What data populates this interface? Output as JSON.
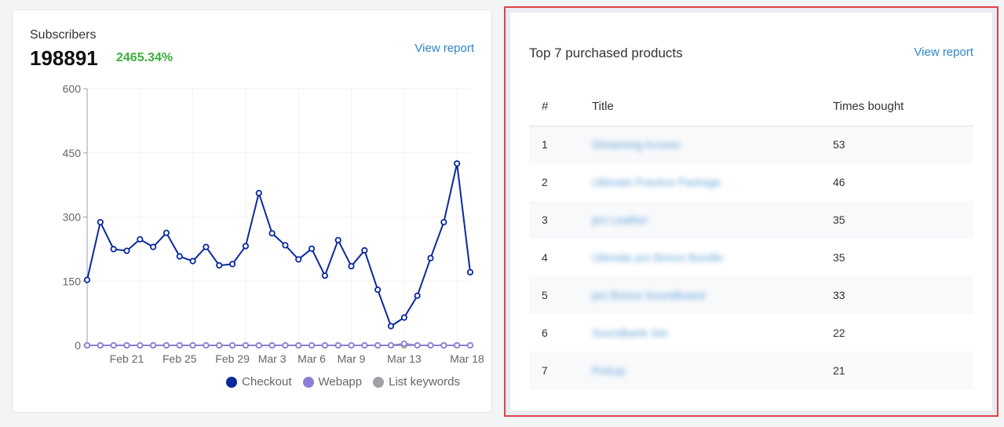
{
  "subscribers": {
    "title": "Subscribers",
    "value": "198891",
    "growth": "2465.34%",
    "view_report": "View report"
  },
  "chart_data": {
    "type": "line",
    "x_tick_labels": [
      "Feb 21",
      "Feb 25",
      "Feb 29",
      "Mar 3",
      "Mar 6",
      "Mar 9",
      "Mar 13",
      "Mar 18"
    ],
    "y_ticks": [
      0,
      150,
      300,
      450,
      600
    ],
    "ylim": [
      0,
      600
    ],
    "legend_position": "bottom-right",
    "series": [
      {
        "name": "Checkout",
        "color": "#0a2a9c",
        "values": [
          153,
          288,
          225,
          221,
          248,
          230,
          263,
          208,
          197,
          230,
          187,
          190,
          232,
          356,
          262,
          234,
          201,
          226,
          163,
          246,
          185,
          222,
          130,
          45,
          65,
          116,
          204,
          288,
          425,
          171
        ]
      },
      {
        "name": "Webapp",
        "color": "#8a7fd6",
        "values": [
          0,
          0,
          0,
          0,
          0,
          0,
          0,
          0,
          0,
          0,
          0,
          0,
          0,
          0,
          0,
          0,
          0,
          0,
          0,
          0,
          0,
          0,
          0,
          0,
          4,
          0,
          0,
          0,
          0,
          0
        ]
      },
      {
        "name": "List keywords",
        "color": "#a0a0a6",
        "values": [
          0,
          0,
          0,
          0,
          0,
          0,
          0,
          0,
          0,
          0,
          0,
          0,
          0,
          0,
          0,
          0,
          0,
          0,
          0,
          0,
          0,
          0,
          0,
          0,
          0,
          0,
          0,
          0,
          0,
          0
        ]
      }
    ]
  },
  "products": {
    "title": "Top 7 purchased products",
    "view_report": "View report",
    "columns": [
      "#",
      "Title",
      "Times bought"
    ],
    "rows": [
      {
        "num": "1",
        "title": "Streaming Access",
        "bought": "53"
      },
      {
        "num": "2",
        "title": "Ultimate Practice Package",
        "bought": "46"
      },
      {
        "num": "3",
        "title": "pro Leather",
        "bought": "35"
      },
      {
        "num": "4",
        "title": "Ultimate pro Bonus Bundle",
        "bought": "35"
      },
      {
        "num": "5",
        "title": "pro Bonus Soundboard",
        "bought": "33"
      },
      {
        "num": "6",
        "title": "Soundbank Set",
        "bought": "22"
      },
      {
        "num": "7",
        "title": "Pickup",
        "bought": "21"
      }
    ]
  }
}
